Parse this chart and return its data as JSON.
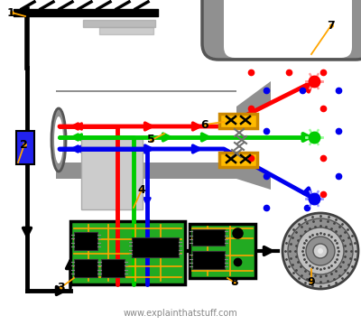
{
  "bg": "#ffffff",
  "orange": "#FFA500",
  "gray": "#888888",
  "lt_gray": "#c8c8c8",
  "dk_gray": "#555555",
  "red": "#ff0000",
  "green": "#00cc00",
  "blue": "#0000ee",
  "blue_box": "#2222ee",
  "pcb_green": "#22aa22",
  "pcb_trace": "#FFA500",
  "website": "www.explainthatstuff.com",
  "crt_gray": "#909090",
  "crt_inner": "#bbbbbb"
}
